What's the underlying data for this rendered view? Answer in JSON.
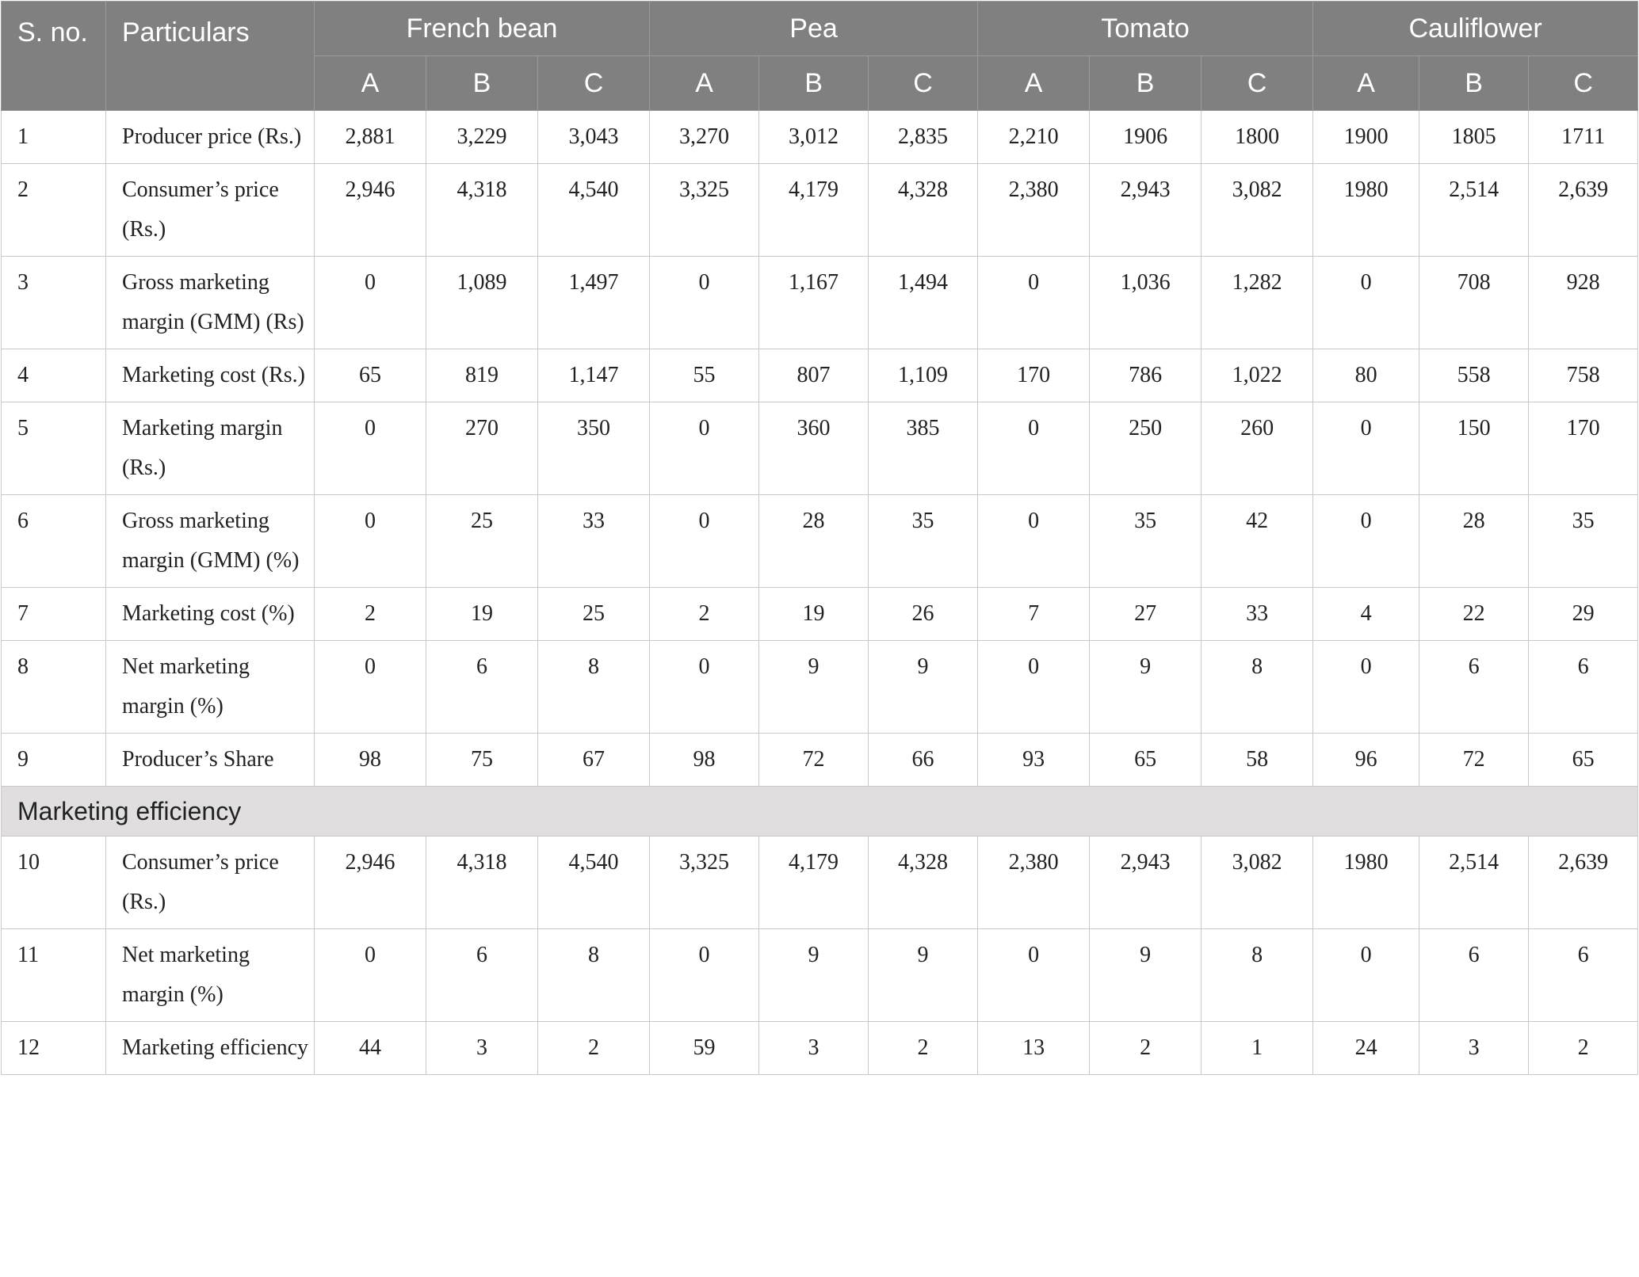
{
  "header": {
    "sno": "S. no.",
    "particulars": "Particulars",
    "crops": [
      "French bean",
      "Pea",
      "Tomato",
      "Cauliflower"
    ],
    "sub_columns": [
      "A",
      "B",
      "C",
      "A",
      "B",
      "C",
      "A",
      "B",
      "C",
      "A",
      "B",
      "C"
    ]
  },
  "rows": [
    {
      "sno": "1",
      "label": "Producer price (Rs.)",
      "values": [
        "2,881",
        "3,229",
        "3,043",
        "3,270",
        "3,012",
        "2,835",
        "2,210",
        "1906",
        "1800",
        "1900",
        "1805",
        "1711"
      ]
    },
    {
      "sno": "2",
      "label": "Consumer’s price (Rs.)",
      "values": [
        "2,946",
        "4,318",
        "4,540",
        "3,325",
        "4,179",
        "4,328",
        "2,380",
        "2,943",
        "3,082",
        "1980",
        "2,514",
        "2,639"
      ]
    },
    {
      "sno": "3",
      "label": "Gross marketing margin (GMM) (Rs)",
      "values": [
        "0",
        "1,089",
        "1,497",
        "0",
        "1,167",
        "1,494",
        "0",
        "1,036",
        "1,282",
        "0",
        "708",
        "928"
      ]
    },
    {
      "sno": "4",
      "label": "Marketing cost (Rs.)",
      "values": [
        "65",
        "819",
        "1,147",
        "55",
        "807",
        "1,109",
        "170",
        "786",
        "1,022",
        "80",
        "558",
        "758"
      ]
    },
    {
      "sno": "5",
      "label": "Marketing margin (Rs.)",
      "values": [
        "0",
        "270",
        "350",
        "0",
        "360",
        "385",
        "0",
        "250",
        "260",
        "0",
        "150",
        "170"
      ]
    },
    {
      "sno": "6",
      "label": "Gross marketing margin (GMM) (%)",
      "values": [
        "0",
        "25",
        "33",
        "0",
        "28",
        "35",
        "0",
        "35",
        "42",
        "0",
        "28",
        "35"
      ]
    },
    {
      "sno": "7",
      "label": "Marketing cost (%)",
      "values": [
        "2",
        "19",
        "25",
        "2",
        "19",
        "26",
        "7",
        "27",
        "33",
        "4",
        "22",
        "29"
      ]
    },
    {
      "sno": "8",
      "label": "Net marketing margin (%)",
      "values": [
        "0",
        "6",
        "8",
        "0",
        "9",
        "9",
        "0",
        "9",
        "8",
        "0",
        "6",
        "6"
      ]
    },
    {
      "sno": "9",
      "label": "Producer’s Share",
      "values": [
        "98",
        "75",
        "67",
        "98",
        "72",
        "66",
        "93",
        "65",
        "58",
        "96",
        "72",
        "65"
      ]
    }
  ],
  "section": {
    "title": "Marketing efficiency"
  },
  "rows2": [
    {
      "sno": "10",
      "label": "Consumer’s price (Rs.)",
      "values": [
        "2,946",
        "4,318",
        "4,540",
        "3,325",
        "4,179",
        "4,328",
        "2,380",
        "2,943",
        "3,082",
        "1980",
        "2,514",
        "2,639"
      ]
    },
    {
      "sno": "11",
      "label": "Net marketing margin (%)",
      "values": [
        "0",
        "6",
        "8",
        "0",
        "9",
        "9",
        "0",
        "9",
        "8",
        "0",
        "6",
        "6"
      ]
    },
    {
      "sno": "12",
      "label": "Marketing efficiency",
      "values": [
        "44",
        "3",
        "2",
        "59",
        "3",
        "2",
        "13",
        "2",
        "1",
        "24",
        "3",
        "2"
      ]
    }
  ]
}
